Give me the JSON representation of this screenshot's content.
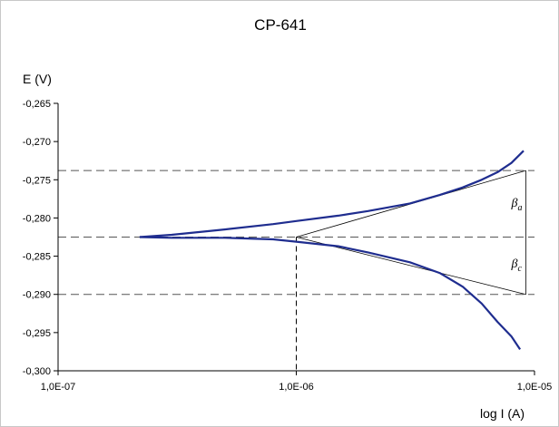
{
  "chart_data": {
    "type": "line",
    "title": "CP-641",
    "ylabel": "E (V)",
    "xlabel": "log I (A)",
    "x_scale": "log",
    "xlim": [
      1e-07,
      1e-05
    ],
    "ylim": [
      -0.3,
      -0.265
    ],
    "x_ticks": [
      1e-07,
      1e-06,
      1e-05
    ],
    "x_tick_labels": [
      "1,0E-07",
      "1,0E-06",
      "1,0E-05"
    ],
    "y_ticks": [
      -0.265,
      -0.27,
      -0.275,
      -0.28,
      -0.285,
      -0.29,
      -0.295,
      -0.3
    ],
    "y_tick_labels": [
      "-0,265",
      "-0,270",
      "-0,275",
      "-0,280",
      "-0,285",
      "-0,290",
      "-0,295",
      "-0,300"
    ],
    "colors": {
      "curve": "#1f2d8f",
      "guide": "#000000",
      "dashed": "#555555"
    },
    "series": [
      {
        "role": "anodic",
        "points": [
          [
            2.2e-07,
            -0.2825
          ],
          [
            3e-07,
            -0.2822
          ],
          [
            5e-07,
            -0.2815
          ],
          [
            8e-07,
            -0.2808
          ],
          [
            1e-06,
            -0.2804
          ],
          [
            1.5e-06,
            -0.2797
          ],
          [
            2e-06,
            -0.2791
          ],
          [
            3e-06,
            -0.2781
          ],
          [
            4e-06,
            -0.277
          ],
          [
            5e-06,
            -0.276
          ],
          [
            6e-06,
            -0.275
          ],
          [
            7e-06,
            -0.274
          ],
          [
            8e-06,
            -0.2728
          ],
          [
            9e-06,
            -0.2712
          ]
        ]
      },
      {
        "role": "cathodic",
        "points": [
          [
            2.2e-07,
            -0.2825
          ],
          [
            3e-07,
            -0.2826
          ],
          [
            5e-07,
            -0.2826
          ],
          [
            8e-07,
            -0.2828
          ],
          [
            1e-06,
            -0.2831
          ],
          [
            1.5e-06,
            -0.2837
          ],
          [
            2e-06,
            -0.2845
          ],
          [
            3e-06,
            -0.2858
          ],
          [
            4e-06,
            -0.2872
          ],
          [
            5e-06,
            -0.289
          ],
          [
            6e-06,
            -0.2912
          ],
          [
            7e-06,
            -0.2936
          ],
          [
            8e-06,
            -0.2955
          ],
          [
            8.7e-06,
            -0.2972
          ]
        ]
      }
    ],
    "tafel_lines": [
      {
        "from": [
          1e-06,
          -0.2825
        ],
        "to": [
          9.2e-06,
          -0.2738
        ]
      },
      {
        "from": [
          1e-06,
          -0.2825
        ],
        "to": [
          9.2e-06,
          -0.29
        ]
      }
    ],
    "h_dashed_lines": [
      -0.2738,
      -0.2825,
      -0.29
    ],
    "v_dashed_line": {
      "x": 1e-06,
      "y_from": -0.2825,
      "y_to": -0.3
    },
    "v_tafel_edge": {
      "x": 9.2e-06,
      "y_from": -0.2738,
      "y_to": -0.29
    },
    "annotations": [
      {
        "symbol": "β",
        "sub": "a",
        "x": 8e-06,
        "y": -0.2785
      },
      {
        "symbol": "β",
        "sub": "c",
        "x": 8e-06,
        "y": -0.2865
      }
    ]
  }
}
